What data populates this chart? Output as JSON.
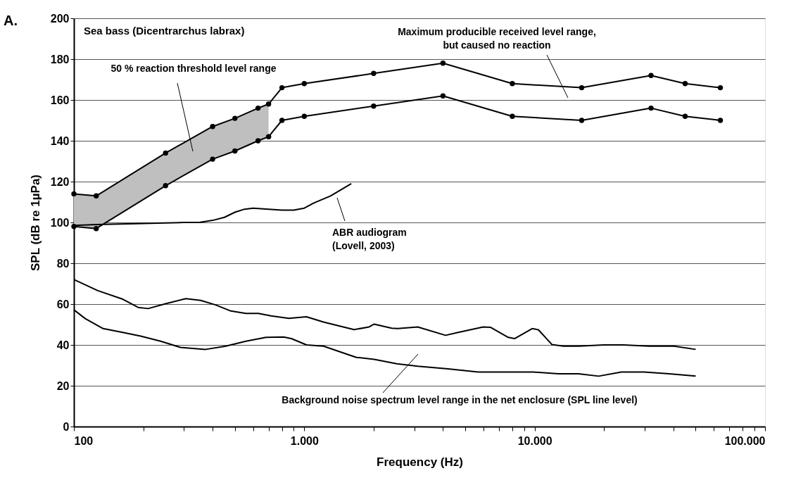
{
  "chart_data": {
    "type": "line",
    "title": "Sea bass (Dicentrarchus labrax)",
    "xlabel": "Frequency (Hz)",
    "ylabel": "SPL (dB re 1µPa)",
    "xlim": [
      100,
      100000
    ],
    "ylim": [
      0,
      200
    ],
    "log": "x",
    "grid": "y",
    "xticks": [
      {
        "value": 100,
        "label": "100"
      },
      {
        "value": 200,
        "label": null
      },
      {
        "value": 300,
        "label": null
      },
      {
        "value": 400,
        "label": null
      },
      {
        "value": 500,
        "label": null
      },
      {
        "value": 600,
        "label": null
      },
      {
        "value": 700,
        "label": null
      },
      {
        "value": 800,
        "label": null
      },
      {
        "value": 900,
        "label": null
      },
      {
        "value": 1000,
        "label": "1.000"
      },
      {
        "value": 2000,
        "label": null
      },
      {
        "value": 3000,
        "label": null
      },
      {
        "value": 4000,
        "label": null
      },
      {
        "value": 5000,
        "label": null
      },
      {
        "value": 6000,
        "label": null
      },
      {
        "value": 7000,
        "label": null
      },
      {
        "value": 8000,
        "label": null
      },
      {
        "value": 9000,
        "label": null
      },
      {
        "value": 10000,
        "label": "10.000"
      },
      {
        "value": 20000,
        "label": null
      },
      {
        "value": 30000,
        "label": null
      },
      {
        "value": 40000,
        "label": null
      },
      {
        "value": 50000,
        "label": null
      },
      {
        "value": 60000,
        "label": null
      },
      {
        "value": 70000,
        "label": null
      },
      {
        "value": 80000,
        "label": null
      },
      {
        "value": 90000,
        "label": null
      },
      {
        "value": 100000,
        "label": "100.000"
      }
    ],
    "yticks": [
      0,
      20,
      40,
      60,
      80,
      100,
      120,
      140,
      160,
      180,
      200
    ],
    "series": [
      {
        "color": "#000000",
        "marker": "circle",
        "x": [
          100,
          125,
          250,
          400,
          500,
          630,
          700,
          800,
          1000,
          2000,
          4000,
          8000,
          16000,
          32000,
          45000,
          64000
        ],
        "values": [
          114,
          113,
          134,
          147,
          151,
          156,
          158,
          166,
          168,
          173,
          178,
          168,
          166,
          172,
          168,
          166
        ],
        "lower": [
          98,
          97,
          118,
          131,
          135,
          140,
          142,
          null,
          null,
          null,
          null,
          null,
          null,
          null,
          null,
          null
        ],
        "upper": [
          114,
          113,
          134,
          147,
          151,
          156,
          158,
          null,
          null,
          null,
          null,
          null,
          null,
          null,
          null,
          null
        ]
      },
      {
        "color": "#000000",
        "marker": "circle",
        "x": [
          100,
          125,
          250,
          400,
          500,
          630,
          700,
          800,
          1000,
          2000,
          4000,
          8000,
          16000,
          32000,
          45000,
          64000
        ],
        "values": [
          98,
          97,
          118,
          131,
          135,
          140,
          142,
          150,
          152,
          157,
          162,
          152,
          150,
          156,
          152,
          150
        ]
      },
      {
        "color": "#000000",
        "marker": "none",
        "x": [
          100,
          125,
          200,
          300,
          350,
          400,
          450,
          500,
          550,
          600,
          700,
          800,
          900,
          1000,
          1100,
          1300,
          1600
        ],
        "values": [
          98.5,
          99,
          99.5,
          100,
          100,
          101,
          102.5,
          105,
          106.5,
          107,
          106.5,
          106,
          106,
          107,
          109.5,
          113,
          119
        ]
      },
      {
        "color": "#000000",
        "marker": "none",
        "x": [
          100,
          127,
          163,
          190,
          210,
          250,
          306,
          355,
          412,
          480,
          558,
          632,
          718,
          857,
          1022,
          1212,
          1644,
          1911,
          2011,
          2396,
          2541,
          3110,
          4103,
          4653,
          5977,
          6446,
          7683,
          8181,
          9752,
          10384,
          11877,
          13352,
          15504,
          19938,
          24362,
          31313,
          40242,
          50000
        ],
        "values": [
          72,
          66.6,
          62.4,
          58.4,
          57.8,
          60.2,
          62.7,
          61.8,
          59.6,
          56.6,
          55.4,
          55.4,
          54.2,
          53,
          53.8,
          51.2,
          47.5,
          48.8,
          50.2,
          48.2,
          48,
          48.8,
          44.7,
          46.1,
          48.8,
          48.6,
          43.7,
          43.1,
          48,
          47.4,
          40.2,
          39.4,
          39.4,
          40,
          40,
          39.4,
          39.4,
          37.8
        ]
      },
      {
        "color": "#000000",
        "marker": "none",
        "x": [
          100,
          112,
          134,
          163,
          195,
          238,
          290,
          373,
          456,
          558,
          682,
          813,
          879,
          1023,
          1212,
          1566,
          1685,
          2011,
          2519,
          3110,
          4204,
          5688,
          7307,
          9875,
          12693,
          15504,
          18957,
          23793,
          29838,
          38387,
          50000
        ],
        "values": [
          57.2,
          52.9,
          48,
          46.1,
          44.3,
          41.8,
          38.8,
          37.8,
          39.4,
          41.8,
          43.7,
          43.9,
          43.1,
          40,
          39.4,
          35.1,
          33.9,
          32.9,
          30.8,
          29.6,
          28.3,
          26.7,
          26.7,
          26.7,
          25.9,
          25.9,
          24.7,
          26.7,
          26.7,
          25.9,
          24.7
        ]
      }
    ],
    "annotations": [
      "A.",
      "50 % reaction threshold level range",
      "Maximum producible received level range,\nbut caused no reaction",
      "ABR audiogram\n(Lovell, 2003)",
      "Background noise spectrum level range in the net enclosure (SPL line level)"
    ]
  }
}
